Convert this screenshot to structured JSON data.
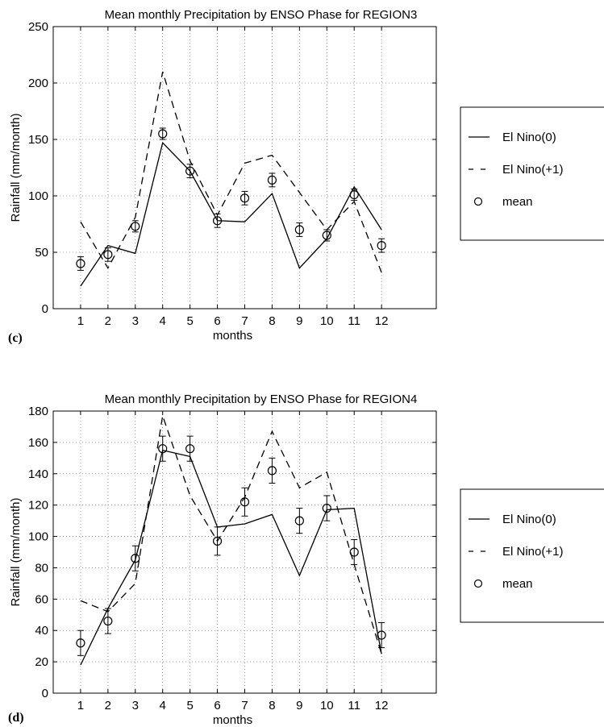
{
  "colors": {
    "line": "#000000",
    "grid": "#8a8a8a",
    "background": "#ffffff"
  },
  "chart_data": [
    {
      "type": "line",
      "panel_label": "(c)",
      "title": "Mean monthly Precipitation by ENSO Phase for REGION3",
      "xlabel": "months",
      "ylabel": "Rainfall (mm/month)",
      "xlim": [
        0,
        14
      ],
      "ylim": [
        0,
        250
      ],
      "xticks": [
        "1",
        "2",
        "3",
        "4",
        "5",
        "6",
        "7",
        "8",
        "9",
        "10",
        "11",
        "12"
      ],
      "yticks": [
        "0",
        "50",
        "100",
        "150",
        "200",
        "250"
      ],
      "grid": true,
      "legend_position": "right, outside plot",
      "x": [
        1,
        2,
        3,
        4,
        5,
        6,
        7,
        8,
        9,
        10,
        11,
        12
      ],
      "series": [
        {
          "name": "El Nino(0)",
          "style": "solid",
          "values": [
            20,
            56,
            49,
            147,
            122,
            78,
            77,
            102,
            36,
            62,
            108,
            70
          ]
        },
        {
          "name": "El Nino(+1)",
          "style": "dashed",
          "values": [
            77,
            36,
            81,
            210,
            131,
            83,
            129,
            136,
            103,
            70,
            95,
            32
          ]
        },
        {
          "name": "mean",
          "style": "circle",
          "values": [
            40,
            48,
            73,
            155,
            122,
            78,
            98,
            114,
            70,
            65,
            101,
            56
          ],
          "error": [
            6,
            6,
            5,
            5,
            6,
            6,
            6,
            6,
            6,
            5,
            5,
            6
          ]
        }
      ]
    },
    {
      "type": "line",
      "panel_label": "(d)",
      "title": "Mean monthly Precipitation by ENSO Phase for REGION4",
      "xlabel": "months",
      "ylabel": "Rainfall (mm/month)",
      "xlim": [
        0,
        14
      ],
      "ylim": [
        0,
        180
      ],
      "xticks": [
        "1",
        "2",
        "3",
        "4",
        "5",
        "6",
        "7",
        "8",
        "9",
        "10",
        "11",
        "12"
      ],
      "yticks": [
        "0",
        "20",
        "40",
        "60",
        "80",
        "100",
        "120",
        "140",
        "160",
        "180"
      ],
      "grid": true,
      "legend_position": "right, outside plot",
      "x": [
        1,
        2,
        3,
        4,
        5,
        6,
        7,
        8,
        9,
        10,
        11,
        12
      ],
      "series": [
        {
          "name": "El Nino(0)",
          "style": "solid",
          "values": [
            18,
            54,
            85,
            155,
            151,
            106,
            108,
            114,
            75,
            117,
            118,
            25
          ]
        },
        {
          "name": "El Nino(+1)",
          "style": "dashed",
          "values": [
            59,
            52,
            70,
            177,
            126,
            97,
            125,
            167,
            131,
            141,
            82,
            25
          ]
        },
        {
          "name": "mean",
          "style": "circle",
          "values": [
            32,
            46,
            86,
            156,
            156,
            97,
            122,
            142,
            110,
            118,
            90,
            37
          ],
          "error": [
            8,
            8,
            8,
            8,
            8,
            9,
            9,
            8,
            8,
            8,
            8,
            8
          ]
        }
      ]
    }
  ]
}
